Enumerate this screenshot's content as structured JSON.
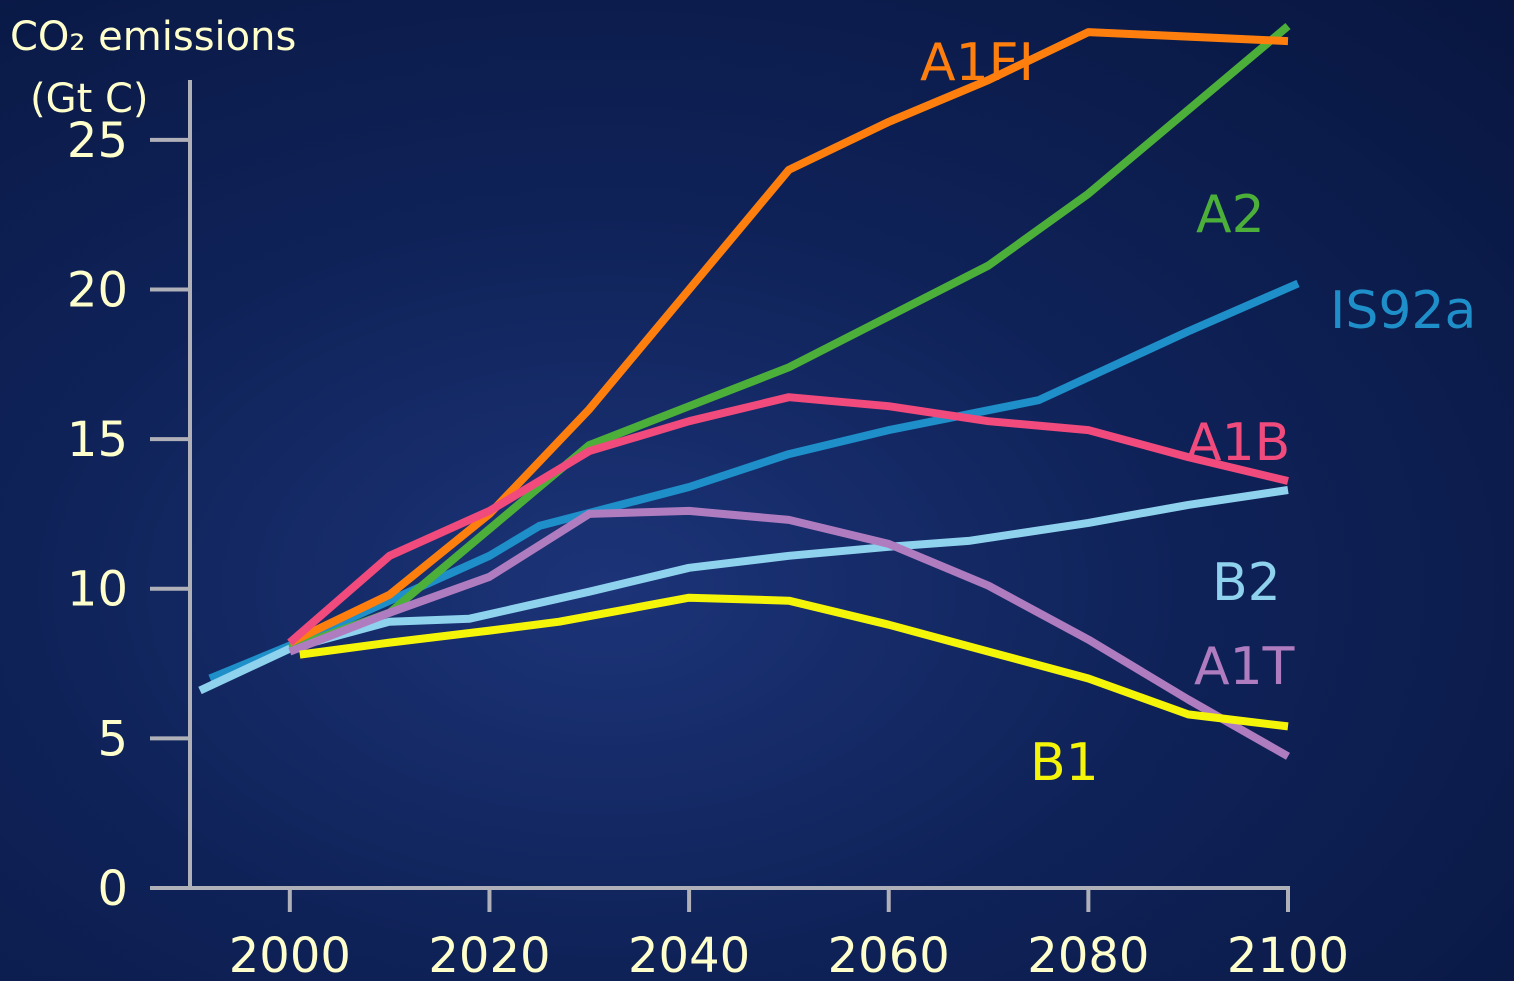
{
  "chart_data": {
    "type": "line",
    "ylabel_line1": "CO₂ emissions",
    "ylabel_line2": "(Gt C)",
    "xlim": [
      1990,
      2100
    ],
    "ylim": [
      0,
      27
    ],
    "xticks": [
      2000,
      2020,
      2040,
      2060,
      2080,
      2100
    ],
    "yticks": [
      0,
      5,
      10,
      15,
      20,
      25
    ],
    "xtick_labels": [
      "2000",
      "2020",
      "2040",
      "2060",
      "2080",
      "2100"
    ],
    "ytick_labels": [
      "0",
      "5",
      "10",
      "15",
      "20",
      "25"
    ],
    "grid": false,
    "legend": "inline labels at right",
    "series": [
      {
        "name": "A1FI",
        "color": "#ff7f0e",
        "points": [
          [
            2000,
            8.2
          ],
          [
            2010,
            9.8
          ],
          [
            2020,
            12.5
          ],
          [
            2030,
            16.0
          ],
          [
            2040,
            20.0
          ],
          [
            2050,
            24.0
          ],
          [
            2060,
            25.6
          ],
          [
            2070,
            27.0
          ],
          [
            2080,
            28.6
          ],
          [
            2100,
            28.3
          ]
        ]
      },
      {
        "name": "A2",
        "color": "#4caf3a",
        "points": [
          [
            2000,
            8.0
          ],
          [
            2010,
            9.2
          ],
          [
            2020,
            12.0
          ],
          [
            2030,
            14.8
          ],
          [
            2040,
            16.1
          ],
          [
            2050,
            17.4
          ],
          [
            2060,
            19.1
          ],
          [
            2070,
            20.8
          ],
          [
            2080,
            23.2
          ],
          [
            2090,
            26.0
          ],
          [
            2100,
            28.8
          ]
        ]
      },
      {
        "name": "IS92a",
        "color": "#1e8fc9",
        "points": [
          [
            1992,
            7.0
          ],
          [
            2000,
            8.1
          ],
          [
            2010,
            9.6
          ],
          [
            2020,
            11.1
          ],
          [
            2025,
            12.1
          ],
          [
            2040,
            13.4
          ],
          [
            2050,
            14.5
          ],
          [
            2060,
            15.3
          ],
          [
            2075,
            16.3
          ],
          [
            2090,
            18.6
          ],
          [
            2101,
            20.2
          ]
        ]
      },
      {
        "name": "A1B",
        "color": "#f04b7c",
        "points": [
          [
            2000,
            8.2
          ],
          [
            2010,
            11.1
          ],
          [
            2020,
            12.6
          ],
          [
            2030,
            14.6
          ],
          [
            2040,
            15.6
          ],
          [
            2050,
            16.4
          ],
          [
            2060,
            16.1
          ],
          [
            2070,
            15.6
          ],
          [
            2080,
            15.3
          ],
          [
            2090,
            14.4
          ],
          [
            2100,
            13.6
          ]
        ]
      },
      {
        "name": "B2",
        "color": "#8ed2ee",
        "points": [
          [
            1991,
            6.6
          ],
          [
            2000,
            8.0
          ],
          [
            2010,
            8.9
          ],
          [
            2018,
            9.0
          ],
          [
            2030,
            9.9
          ],
          [
            2040,
            10.7
          ],
          [
            2050,
            11.1
          ],
          [
            2060,
            11.4
          ],
          [
            2068,
            11.6
          ],
          [
            2080,
            12.2
          ],
          [
            2090,
            12.8
          ],
          [
            2100,
            13.3
          ]
        ]
      },
      {
        "name": "A1T",
        "color": "#b07cc0",
        "points": [
          [
            2000,
            7.9
          ],
          [
            2010,
            9.2
          ],
          [
            2020,
            10.4
          ],
          [
            2030,
            12.5
          ],
          [
            2040,
            12.6
          ],
          [
            2050,
            12.3
          ],
          [
            2060,
            11.5
          ],
          [
            2070,
            10.1
          ],
          [
            2080,
            8.3
          ],
          [
            2090,
            6.3
          ],
          [
            2100,
            4.4
          ]
        ]
      },
      {
        "name": "B1",
        "color": "#f5f50a",
        "points": [
          [
            2001,
            7.8
          ],
          [
            2010,
            8.2
          ],
          [
            2020,
            8.6
          ],
          [
            2027,
            8.9
          ],
          [
            2040,
            9.7
          ],
          [
            2050,
            9.6
          ],
          [
            2060,
            8.8
          ],
          [
            2070,
            7.9
          ],
          [
            2080,
            7.0
          ],
          [
            2090,
            5.8
          ],
          [
            2100,
            5.4
          ]
        ]
      }
    ]
  }
}
